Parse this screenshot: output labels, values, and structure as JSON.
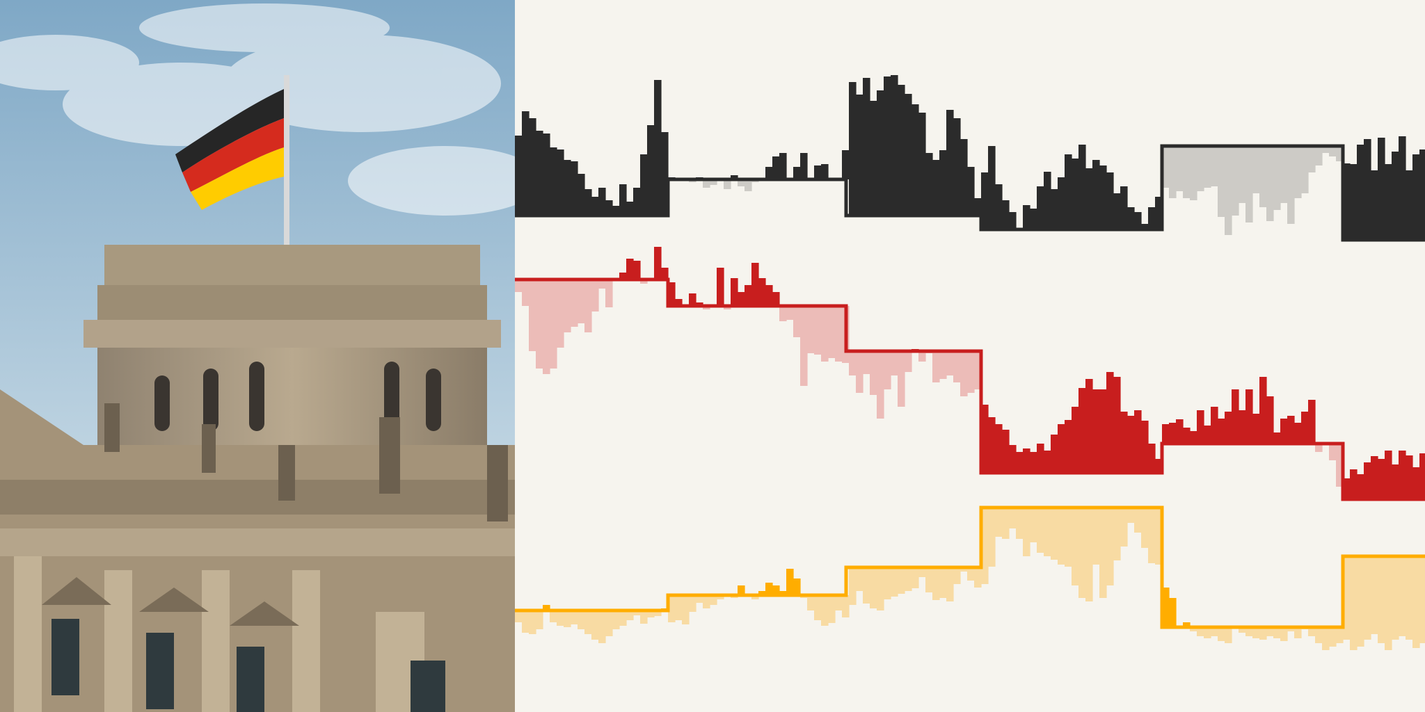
{
  "photo": {
    "subject": "reichstag-building-with-german-flag",
    "colors": {
      "sky_top": "#7fa8c6",
      "sky_bottom": "#c9dbe6",
      "stone": "#b6a68d",
      "stone_dark": "#7d6f5c"
    },
    "flag_colors": [
      "#262626",
      "#d52b1e",
      "#ffcc00"
    ]
  },
  "chart_data": {
    "type": "step-area",
    "title": "",
    "xlabel": "",
    "ylabel": "",
    "grid": false,
    "legend": "none",
    "x": [
      0,
      10,
      20,
      30,
      40,
      50,
      60,
      70,
      80,
      90,
      100,
      110,
      120,
      130,
      140,
      150,
      160,
      170,
      180,
      190,
      200,
      210,
      220,
      230,
      240,
      250,
      260,
      270,
      280,
      290,
      300,
      310,
      320,
      330,
      340,
      350,
      360,
      370,
      380,
      390,
      400,
      410,
      420,
      430,
      440,
      450,
      460,
      470,
      480,
      490,
      500,
      510,
      520,
      530,
      540,
      550,
      560,
      570,
      580,
      590,
      600,
      610,
      620,
      630,
      640,
      650,
      660,
      670,
      680,
      690,
      700,
      710,
      720,
      730,
      740,
      750,
      760,
      770,
      780,
      790,
      800,
      810,
      820,
      830,
      840,
      850,
      860,
      870,
      880,
      890,
      900,
      910,
      920,
      930,
      940,
      950,
      960,
      970,
      980,
      990,
      1000,
      1010,
      1020,
      1030,
      1040,
      1050,
      1060,
      1070,
      1080,
      1090,
      1100,
      1110,
      1120,
      1130,
      1140,
      1150,
      1160,
      1170,
      1180,
      1190,
      1200,
      1210,
      1220,
      1230,
      1240,
      1250,
      1260,
      1270,
      1280,
      1290,
      1300
    ],
    "series": [
      {
        "color": "#2b2b2b",
        "fade_color": "#cdcbc6",
        "baseline": [
          {
            "x0": 0,
            "x1": 220,
            "v": 310
          },
          {
            "x0": 220,
            "x1": 476,
            "v": 258
          },
          {
            "x0": 476,
            "x1": 670,
            "v": 310
          },
          {
            "x0": 670,
            "x1": 930,
            "v": 330
          },
          {
            "x0": 930,
            "x1": 1190,
            "v": 210
          },
          {
            "x0": 1190,
            "x1": 1308,
            "v": 345
          }
        ],
        "values": [
          195,
          160,
          170,
          188,
          192,
          212,
          215,
          230,
          232,
          250,
          272,
          283,
          270,
          288,
          296,
          265,
          290,
          270,
          222,
          180,
          115,
          190,
          255,
          260,
          258,
          262,
          255,
          270,
          266,
          260,
          272,
          252,
          268,
          275,
          262,
          258,
          240,
          225,
          220,
          258,
          240,
          220,
          258,
          238,
          236,
          258,
          258,
          216,
          118,
          136,
          112,
          145,
          130,
          110,
          108,
          122,
          135,
          150,
          162,
          220,
          230,
          216,
          158,
          170,
          200,
          240,
          285,
          248,
          210,
          265,
          288,
          305,
          328,
          295,
          300,
          268,
          247,
          272,
          255,
          222,
          228,
          208,
          242,
          230,
          238,
          248,
          278,
          268,
          298,
          305,
          322,
          298,
          283,
          270,
          285,
          275,
          285,
          288,
          275,
          270,
          268,
          312,
          338,
          310,
          292,
          320,
          278,
          298,
          318,
          302,
          292,
          322,
          285,
          278,
          248,
          238,
          220,
          225,
          232,
          235,
          236,
          208,
          200,
          245,
          198,
          236,
          218,
          196,
          245,
          222,
          215
        ]
      },
      {
        "color": "#c81e1e",
        "fade_color": "#ecbcb8",
        "baseline": [
          {
            "x0": 0,
            "x1": 220,
            "v": 402
          },
          {
            "x0": 220,
            "x1": 476,
            "v": 440
          },
          {
            "x0": 476,
            "x1": 670,
            "v": 505
          },
          {
            "x0": 670,
            "x1": 930,
            "v": 680
          },
          {
            "x0": 930,
            "x1": 1190,
            "v": 638
          },
          {
            "x0": 1190,
            "x1": 1308,
            "v": 718
          }
        ],
        "values": [
          420,
          440,
          505,
          530,
          538,
          530,
          500,
          478,
          470,
          465,
          478,
          448,
          415,
          442,
          402,
          392,
          372,
          375,
          408,
          402,
          355,
          385,
          406,
          430,
          440,
          422,
          435,
          445,
          440,
          385,
          445,
          400,
          420,
          410,
          378,
          400,
          410,
          420,
          462,
          460,
          485,
          555,
          508,
          510,
          520,
          515,
          520,
          522,
          540,
          565,
          538,
          568,
          602,
          560,
          540,
          585,
          535,
          502,
          520,
          508,
          550,
          545,
          540,
          550,
          570,
          565,
          560,
          582,
          600,
          610,
          618,
          640,
          650,
          645,
          650,
          638,
          648,
          625,
          610,
          604,
          585,
          558,
          545,
          560,
          560,
          535,
          542,
          592,
          598,
          590,
          605,
          638,
          660,
          610,
          608,
          603,
          615,
          620,
          590,
          612,
          585,
          602,
          592,
          560,
          590,
          560,
          595,
          542,
          570,
          622,
          602,
          598,
          608,
          592,
          575,
          650,
          638,
          662,
          700,
          688,
          675,
          682,
          665,
          656,
          660,
          648,
          668,
          648,
          655,
          672,
          652
        ]
      },
      {
        "color": "#ffad00",
        "fade_color": "#f8dba3",
        "baseline": [
          {
            "x0": 0,
            "x1": 220,
            "v": 878
          },
          {
            "x0": 220,
            "x1": 476,
            "v": 856
          },
          {
            "x0": 476,
            "x1": 670,
            "v": 816
          },
          {
            "x0": 670,
            "x1": 930,
            "v": 730
          },
          {
            "x0": 930,
            "x1": 1190,
            "v": 902
          },
          {
            "x0": 1190,
            "x1": 1308,
            "v": 800
          }
        ],
        "values": [
          895,
          910,
          912,
          905,
          870,
          895,
          900,
          902,
          898,
          905,
          912,
          920,
          925,
          915,
          905,
          900,
          892,
          885,
          897,
          888,
          886,
          875,
          895,
          892,
          898,
          880,
          867,
          875,
          870,
          862,
          858,
          860,
          842,
          858,
          862,
          850,
          838,
          842,
          850,
          818,
          832,
          860,
          878,
          892,
          900,
          896,
          878,
          888,
          870,
          850,
          868,
          875,
          878,
          862,
          858,
          854,
          850,
          846,
          830,
          852,
          863,
          860,
          865,
          840,
          822,
          835,
          845,
          840,
          815,
          772,
          775,
          760,
          775,
          800,
          780,
          795,
          800,
          805,
          812,
          815,
          842,
          860,
          865,
          812,
          860,
          842,
          806,
          786,
          752,
          766,
          788,
          810,
          812,
          845,
          860,
          900,
          895,
          908,
          915,
          918,
          915,
          922,
          925,
          900,
          910,
          915,
          918,
          920,
          915,
          918,
          922,
          908,
          918,
          905,
          915,
          925,
          935,
          930,
          925,
          920,
          935,
          930,
          920,
          912,
          925,
          935,
          920,
          915,
          920,
          932,
          925
        ]
      }
    ]
  }
}
